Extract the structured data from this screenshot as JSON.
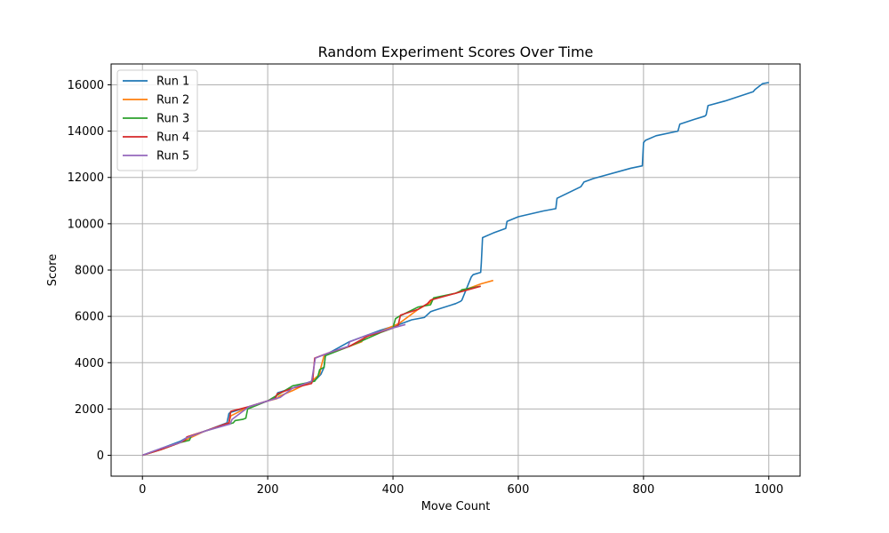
{
  "chart_data": {
    "type": "line",
    "title": "Random Experiment Scores Over Time",
    "xlabel": "Move Count",
    "ylabel": "Score",
    "xlim": [
      -50,
      1050
    ],
    "ylim": [
      -900,
      16900
    ],
    "xticks": [
      0,
      200,
      400,
      600,
      800,
      1000
    ],
    "yticks": [
      0,
      2000,
      4000,
      6000,
      8000,
      10000,
      12000,
      14000,
      16000
    ],
    "grid": true,
    "legend": "top-left",
    "series": [
      {
        "name": "Run 1",
        "color": "#1f77b4",
        "x": [
          0,
          30,
          60,
          70,
          100,
          135,
          138,
          140,
          170,
          200,
          213,
          216,
          240,
          270,
          278,
          285,
          290,
          292,
          300,
          330,
          380,
          410,
          430,
          450,
          460,
          465,
          500,
          508,
          510,
          525,
          528,
          540,
          541,
          543,
          560,
          580,
          582,
          600,
          640,
          660,
          662,
          700,
          705,
          720,
          780,
          798,
          800,
          803,
          820,
          855,
          858,
          880,
          898,
          900,
          903,
          930,
          975,
          978,
          990,
          1000
        ],
        "y": [
          0,
          300,
          600,
          750,
          1050,
          1400,
          1800,
          1850,
          2100,
          2350,
          2500,
          2700,
          2900,
          3200,
          3300,
          3500,
          3800,
          4300,
          4450,
          4900,
          5400,
          5650,
          5850,
          5950,
          6200,
          6250,
          6550,
          6650,
          6700,
          7700,
          7800,
          7900,
          8300,
          9400,
          9600,
          9800,
          10100,
          10300,
          10550,
          10650,
          11100,
          11600,
          11800,
          11950,
          12400,
          12500,
          13500,
          13600,
          13800,
          14000,
          14300,
          14500,
          14650,
          14700,
          15100,
          15300,
          15700,
          15800,
          16050,
          16100
        ]
      },
      {
        "name": "Run 2",
        "color": "#ff7f0e",
        "x": [
          0,
          30,
          60,
          72,
          100,
          138,
          141,
          170,
          200,
          215,
          218,
          240,
          270,
          283,
          285,
          290,
          330,
          350,
          355,
          380,
          410,
          440,
          460,
          463,
          500,
          520,
          540,
          560
        ],
        "y": [
          0,
          250,
          550,
          700,
          1050,
          1400,
          1700,
          2100,
          2350,
          2450,
          2550,
          2800,
          3200,
          3500,
          3800,
          4300,
          4700,
          4900,
          5100,
          5350,
          5700,
          6300,
          6600,
          6750,
          7000,
          7200,
          7400,
          7550
        ]
      },
      {
        "name": "Run 3",
        "color": "#2ca02c",
        "x": [
          0,
          30,
          60,
          75,
          78,
          100,
          145,
          148,
          160,
          165,
          168,
          200,
          240,
          275,
          280,
          283,
          290,
          292,
          330,
          380,
          400,
          404,
          410,
          440,
          460,
          465,
          500,
          508,
          510,
          540
        ],
        "y": [
          0,
          250,
          550,
          650,
          850,
          1050,
          1400,
          1500,
          1550,
          1600,
          2000,
          2350,
          3000,
          3200,
          3400,
          3700,
          3800,
          4300,
          4700,
          5300,
          5500,
          5900,
          6000,
          6400,
          6500,
          6800,
          7000,
          7100,
          7150,
          7300
        ]
      },
      {
        "name": "Run 4",
        "color": "#d62728",
        "x": [
          0,
          30,
          60,
          68,
          71,
          100,
          138,
          141,
          170,
          200,
          212,
          215,
          240,
          270,
          272,
          275,
          300,
          330,
          360,
          400,
          408,
          412,
          440,
          455,
          460,
          500,
          540
        ],
        "y": [
          0,
          250,
          550,
          650,
          800,
          1050,
          1400,
          1900,
          2100,
          2350,
          2450,
          2650,
          2900,
          3100,
          3300,
          4200,
          4450,
          4700,
          5150,
          5500,
          5600,
          6050,
          6300,
          6550,
          6700,
          7000,
          7300
        ]
      },
      {
        "name": "Run 5",
        "color": "#9467bd",
        "x": [
          0,
          30,
          60,
          70,
          100,
          140,
          143,
          170,
          200,
          220,
          240,
          270,
          273,
          276,
          300,
          328,
          331,
          360,
          400,
          420
        ],
        "y": [
          0,
          300,
          550,
          750,
          1050,
          1350,
          1550,
          2100,
          2350,
          2500,
          2900,
          3200,
          3700,
          4200,
          4450,
          4700,
          4900,
          5200,
          5500,
          5650
        ]
      }
    ]
  }
}
